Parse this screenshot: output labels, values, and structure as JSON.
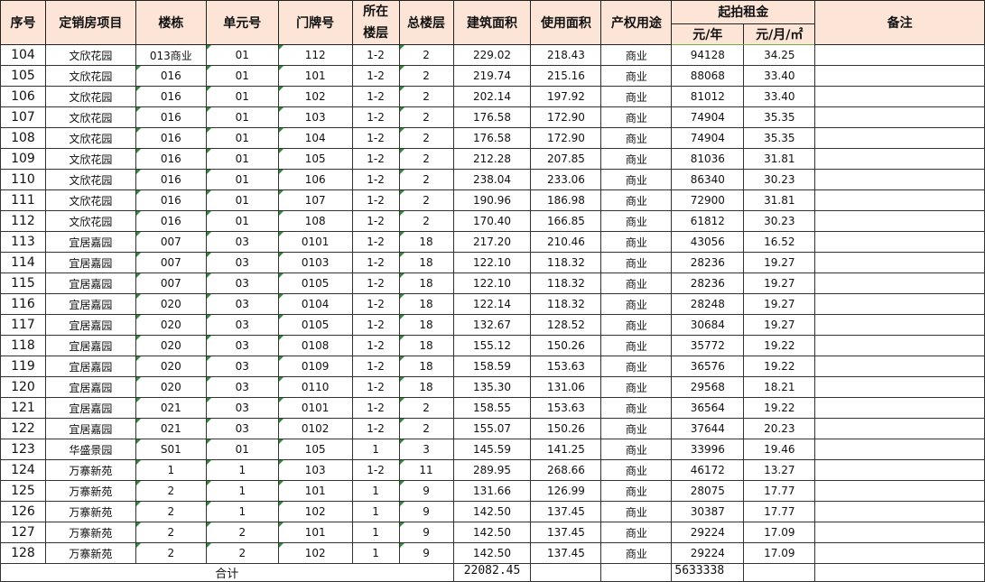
{
  "headers": {
    "seq": "序号",
    "project": "定销房项目",
    "building": "楼栋",
    "unit": "单元号",
    "door": "门牌号",
    "floor": "所在楼层",
    "total_floors": "总楼层",
    "build_area": "建筑面积",
    "use_area": "使用面积",
    "usage": "产权用途",
    "rent_group": "起拍租金",
    "rent_year": "元/年",
    "rent_month_sqm": "元/月/㎡",
    "remark": "备注"
  },
  "rows": [
    [
      "104",
      "文欣花园",
      "013商业",
      "01",
      "112",
      "1-2",
      "2",
      "229.02",
      "218.43",
      "商业",
      "94128",
      "34.25",
      ""
    ],
    [
      "105",
      "文欣花园",
      "016",
      "01",
      "101",
      "1-2",
      "2",
      "219.74",
      "215.16",
      "商业",
      "88068",
      "33.40",
      ""
    ],
    [
      "106",
      "文欣花园",
      "016",
      "01",
      "102",
      "1-2",
      "2",
      "202.14",
      "197.92",
      "商业",
      "81012",
      "33.40",
      ""
    ],
    [
      "107",
      "文欣花园",
      "016",
      "01",
      "103",
      "1-2",
      "2",
      "176.58",
      "172.90",
      "商业",
      "74904",
      "35.35",
      ""
    ],
    [
      "108",
      "文欣花园",
      "016",
      "01",
      "104",
      "1-2",
      "2",
      "176.58",
      "172.90",
      "商业",
      "74904",
      "35.35",
      ""
    ],
    [
      "109",
      "文欣花园",
      "016",
      "01",
      "105",
      "1-2",
      "2",
      "212.28",
      "207.85",
      "商业",
      "81036",
      "31.81",
      ""
    ],
    [
      "110",
      "文欣花园",
      "016",
      "01",
      "106",
      "1-2",
      "2",
      "238.04",
      "233.06",
      "商业",
      "86340",
      "30.23",
      ""
    ],
    [
      "111",
      "文欣花园",
      "016",
      "01",
      "107",
      "1-2",
      "2",
      "190.96",
      "186.98",
      "商业",
      "72900",
      "31.81",
      ""
    ],
    [
      "112",
      "文欣花园",
      "016",
      "01",
      "108",
      "1-2",
      "2",
      "170.40",
      "166.85",
      "商业",
      "61812",
      "30.23",
      ""
    ],
    [
      "113",
      "宜居嘉园",
      "007",
      "03",
      "0101",
      "1-2",
      "18",
      "217.20",
      "210.46",
      "商业",
      "43056",
      "16.52",
      ""
    ],
    [
      "114",
      "宜居嘉园",
      "007",
      "03",
      "0103",
      "1-2",
      "18",
      "122.10",
      "118.32",
      "商业",
      "28236",
      "19.27",
      ""
    ],
    [
      "115",
      "宜居嘉园",
      "007",
      "03",
      "0105",
      "1-2",
      "18",
      "122.10",
      "118.32",
      "商业",
      "28236",
      "19.27",
      ""
    ],
    [
      "116",
      "宜居嘉园",
      "020",
      "03",
      "0104",
      "1-2",
      "18",
      "122.14",
      "118.32",
      "商业",
      "28248",
      "19.27",
      ""
    ],
    [
      "117",
      "宜居嘉园",
      "020",
      "03",
      "0105",
      "1-2",
      "18",
      "132.67",
      "128.52",
      "商业",
      "30684",
      "19.27",
      ""
    ],
    [
      "118",
      "宜居嘉园",
      "020",
      "03",
      "0108",
      "1-2",
      "18",
      "155.12",
      "150.26",
      "商业",
      "35772",
      "19.22",
      ""
    ],
    [
      "119",
      "宜居嘉园",
      "020",
      "03",
      "0109",
      "1-2",
      "18",
      "158.59",
      "153.63",
      "商业",
      "36576",
      "19.22",
      ""
    ],
    [
      "120",
      "宜居嘉园",
      "020",
      "03",
      "0110",
      "1-2",
      "18",
      "135.30",
      "131.06",
      "商业",
      "29568",
      "18.21",
      ""
    ],
    [
      "121",
      "宜居嘉园",
      "021",
      "03",
      "0101",
      "1-2",
      "2",
      "158.55",
      "153.63",
      "商业",
      "36564",
      "19.22",
      ""
    ],
    [
      "122",
      "宜居嘉园",
      "021",
      "03",
      "0102",
      "1-2",
      "2",
      "155.07",
      "150.26",
      "商业",
      "37644",
      "20.23",
      ""
    ],
    [
      "123",
      "华盛景园",
      "S01",
      "01",
      "105",
      "1",
      "3",
      "145.59",
      "141.25",
      "商业",
      "33996",
      "19.46",
      ""
    ],
    [
      "124",
      "万寨新苑",
      "1",
      "1",
      "103",
      "1-2",
      "11",
      "289.95",
      "268.66",
      "商业",
      "46172",
      "13.27",
      ""
    ],
    [
      "125",
      "万寨新苑",
      "2",
      "1",
      "101",
      "1",
      "9",
      "131.66",
      "126.99",
      "商业",
      "28075",
      "17.77",
      ""
    ],
    [
      "126",
      "万寨新苑",
      "2",
      "1",
      "102",
      "1",
      "9",
      "142.50",
      "137.45",
      "商业",
      "30387",
      "17.77",
      ""
    ],
    [
      "127",
      "万寨新苑",
      "2",
      "2",
      "101",
      "1",
      "9",
      "142.50",
      "137.45",
      "商业",
      "29224",
      "17.09",
      ""
    ],
    [
      "128",
      "万寨新苑",
      "2",
      "2",
      "102",
      "1",
      "9",
      "142.50",
      "137.45",
      "商业",
      "29224",
      "17.09",
      ""
    ]
  ],
  "total": {
    "label": "合计",
    "build_area": "22082.45",
    "rent_year": "5633338"
  },
  "colors": {
    "header_bg": "#fce4d6",
    "error_marker": "#2e8b3a"
  }
}
